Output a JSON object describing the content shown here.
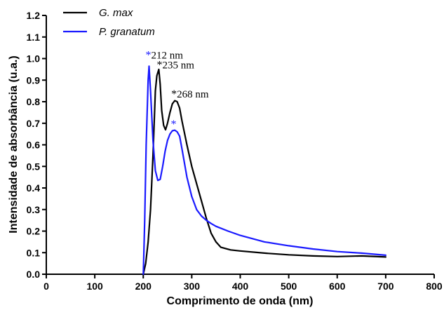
{
  "chart_data": {
    "type": "line",
    "title": "",
    "xlabel": "Comprimento de onda (nm)",
    "ylabel": "Intensidade de absorbância (u.a.)",
    "xlim": [
      0,
      800
    ],
    "ylim": [
      0,
      1.2
    ],
    "x_ticks": [
      0,
      100,
      200,
      300,
      400,
      500,
      600,
      700,
      800
    ],
    "y_ticks": [
      0.0,
      0.1,
      0.2,
      0.3,
      0.4,
      0.5,
      0.6,
      0.7,
      0.8,
      0.9,
      1.0,
      1.1,
      1.2
    ],
    "y_tick_labels": [
      "0.0",
      "0.1",
      "0.2",
      "0.3",
      "0.4",
      "0.5",
      "0.6",
      "0.7",
      "0.8",
      "0.9",
      "1.0",
      "1.1",
      "1.2"
    ],
    "grid": false,
    "legend_position": "top-left",
    "series": [
      {
        "name": "G. max",
        "color": "#000000",
        "points": [
          [
            200,
            0.0
          ],
          [
            205,
            0.05
          ],
          [
            210,
            0.15
          ],
          [
            215,
            0.3
          ],
          [
            220,
            0.55
          ],
          [
            225,
            0.85
          ],
          [
            228,
            0.92
          ],
          [
            232,
            0.95
          ],
          [
            235,
            0.88
          ],
          [
            238,
            0.76
          ],
          [
            242,
            0.69
          ],
          [
            246,
            0.67
          ],
          [
            250,
            0.7
          ],
          [
            255,
            0.75
          ],
          [
            260,
            0.79
          ],
          [
            265,
            0.805
          ],
          [
            270,
            0.8
          ],
          [
            275,
            0.77
          ],
          [
            280,
            0.71
          ],
          [
            290,
            0.6
          ],
          [
            300,
            0.5
          ],
          [
            310,
            0.42
          ],
          [
            320,
            0.34
          ],
          [
            330,
            0.26
          ],
          [
            340,
            0.19
          ],
          [
            350,
            0.15
          ],
          [
            360,
            0.125
          ],
          [
            380,
            0.113
          ],
          [
            400,
            0.108
          ],
          [
            450,
            0.098
          ],
          [
            500,
            0.09
          ],
          [
            550,
            0.085
          ],
          [
            600,
            0.082
          ],
          [
            650,
            0.085
          ],
          [
            700,
            0.08
          ]
        ]
      },
      {
        "name": "P. granatum",
        "color": "#1a1aff",
        "points": [
          [
            200,
            0.0
          ],
          [
            203,
            0.25
          ],
          [
            206,
            0.6
          ],
          [
            210,
            0.9
          ],
          [
            212,
            0.965
          ],
          [
            215,
            0.85
          ],
          [
            220,
            0.62
          ],
          [
            225,
            0.48
          ],
          [
            230,
            0.435
          ],
          [
            235,
            0.44
          ],
          [
            240,
            0.5
          ],
          [
            245,
            0.57
          ],
          [
            250,
            0.62
          ],
          [
            255,
            0.65
          ],
          [
            260,
            0.665
          ],
          [
            265,
            0.668
          ],
          [
            270,
            0.66
          ],
          [
            275,
            0.64
          ],
          [
            280,
            0.58
          ],
          [
            290,
            0.45
          ],
          [
            300,
            0.36
          ],
          [
            310,
            0.3
          ],
          [
            320,
            0.27
          ],
          [
            330,
            0.25
          ],
          [
            340,
            0.235
          ],
          [
            350,
            0.222
          ],
          [
            375,
            0.2
          ],
          [
            400,
            0.18
          ],
          [
            450,
            0.15
          ],
          [
            500,
            0.132
          ],
          [
            550,
            0.117
          ],
          [
            600,
            0.105
          ],
          [
            650,
            0.098
          ],
          [
            700,
            0.088
          ]
        ]
      }
    ],
    "annotations": [
      {
        "star": "*",
        "text": "212 nm",
        "star_color": "#1a1aff",
        "x": 212,
        "y": 1.0
      },
      {
        "star": "*",
        "text": "235 nm",
        "star_color": "#000000",
        "x": 235,
        "y": 0.955
      },
      {
        "star": "*",
        "text": "268 nm",
        "star_color": "#000000",
        "x": 265,
        "y": 0.82
      },
      {
        "star": "*",
        "text": "",
        "star_color": "#1a1aff",
        "x": 264,
        "y": 0.68
      }
    ]
  }
}
